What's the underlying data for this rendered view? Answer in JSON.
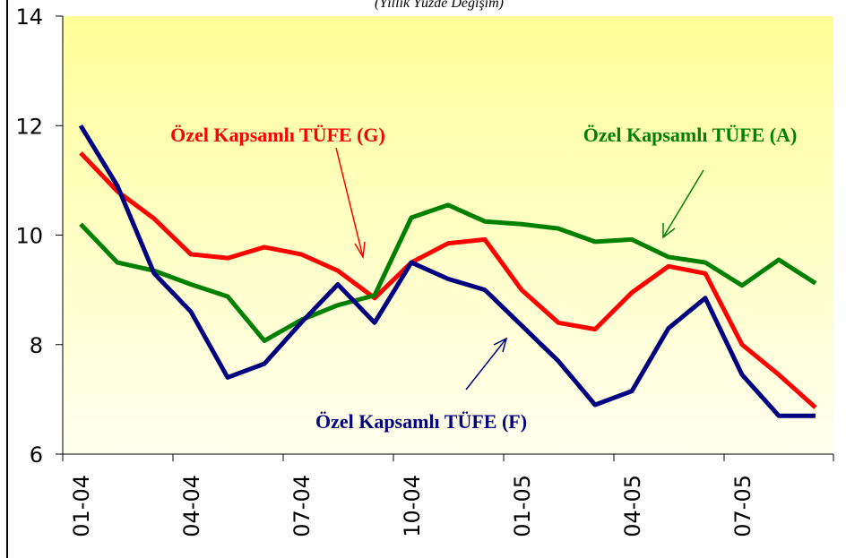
{
  "chart_data": {
    "type": "line",
    "title": "(Yıllık Yüzde Değişim)",
    "categories": [
      "01-04",
      null,
      null,
      "04-04",
      null,
      null,
      "07-04",
      null,
      null,
      "10-04",
      null,
      null,
      "01-05",
      null,
      null,
      "04-05",
      null,
      null,
      "07-05",
      null,
      null
    ],
    "series": [
      {
        "name": "Özel Kapsamlı TÜFE (G)",
        "color": "#ff0000",
        "values": [
          11.5,
          10.8,
          10.3,
          9.65,
          9.58,
          9.78,
          9.65,
          9.35,
          8.85,
          9.5,
          9.85,
          9.92,
          9.0,
          8.4,
          8.28,
          8.95,
          9.43,
          9.3,
          8.0,
          7.45,
          6.85
        ]
      },
      {
        "name": "Özel Kapsamlı TÜFE (A)",
        "color": "#008000",
        "values": [
          10.2,
          9.5,
          9.35,
          9.1,
          8.88,
          8.07,
          8.45,
          8.72,
          8.9,
          10.32,
          10.55,
          10.25,
          10.2,
          10.12,
          9.88,
          9.92,
          9.6,
          9.5,
          9.08,
          9.55,
          9.12
        ]
      },
      {
        "name": "Özel Kapsamlı TÜFE (F)",
        "color": "#000080",
        "values": [
          12.0,
          10.9,
          9.3,
          8.6,
          7.4,
          7.65,
          8.4,
          9.1,
          8.4,
          9.5,
          9.2,
          9.0,
          8.35,
          7.7,
          6.9,
          7.15,
          8.3,
          8.85,
          7.45,
          6.7,
          6.7
        ]
      }
    ],
    "ylim": [
      6,
      14
    ],
    "yticks": [
      6,
      8,
      10,
      12,
      14
    ],
    "grid": false
  }
}
